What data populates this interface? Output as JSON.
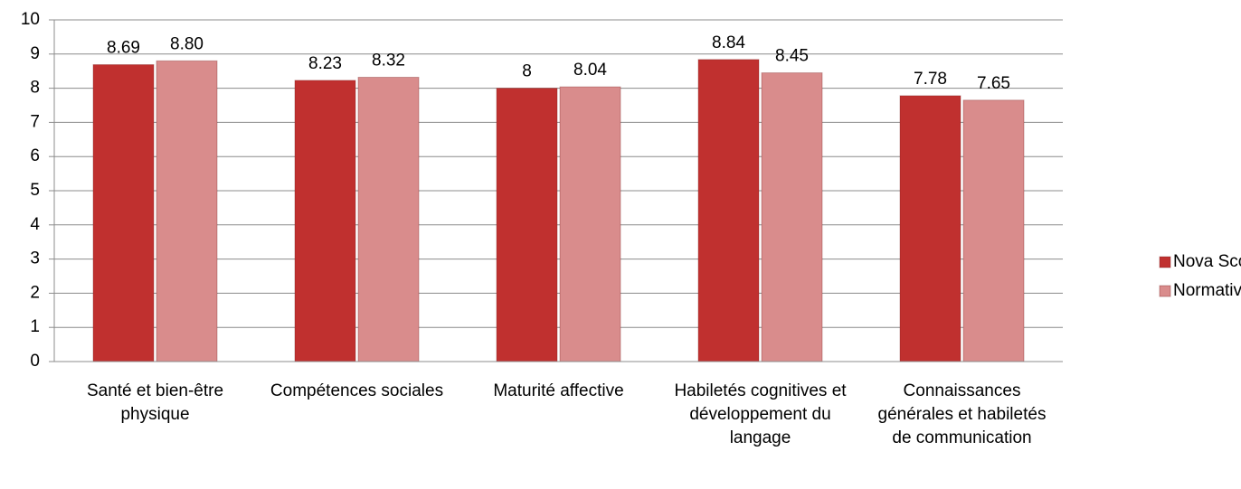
{
  "chart_data": {
    "type": "bar",
    "categories": [
      "Santé et bien-être physique",
      "Compétences sociales",
      "Maturité affective",
      "Habiletés cognitives et développement du langage",
      "Connaissances générales et habiletés de communication"
    ],
    "series": [
      {
        "name": "Nova Scotia",
        "color": "#c0302f",
        "values": [
          8.69,
          8.23,
          8,
          8.84,
          7.78
        ],
        "value_labels": [
          "8.69",
          "8.23",
          "8",
          "8.84",
          "7.78"
        ]
      },
      {
        "name": "Normative II",
        "color": "#d98c8c",
        "values": [
          8.8,
          8.32,
          8.04,
          8.45,
          7.65
        ],
        "value_labels": [
          "8.80",
          "8.32",
          "8.04",
          "8.45",
          "7.65"
        ]
      }
    ],
    "ylim": [
      0,
      10
    ],
    "yticks": [
      0,
      1,
      2,
      3,
      4,
      5,
      6,
      7,
      8,
      9,
      10
    ],
    "grid": true,
    "legend": "right"
  }
}
